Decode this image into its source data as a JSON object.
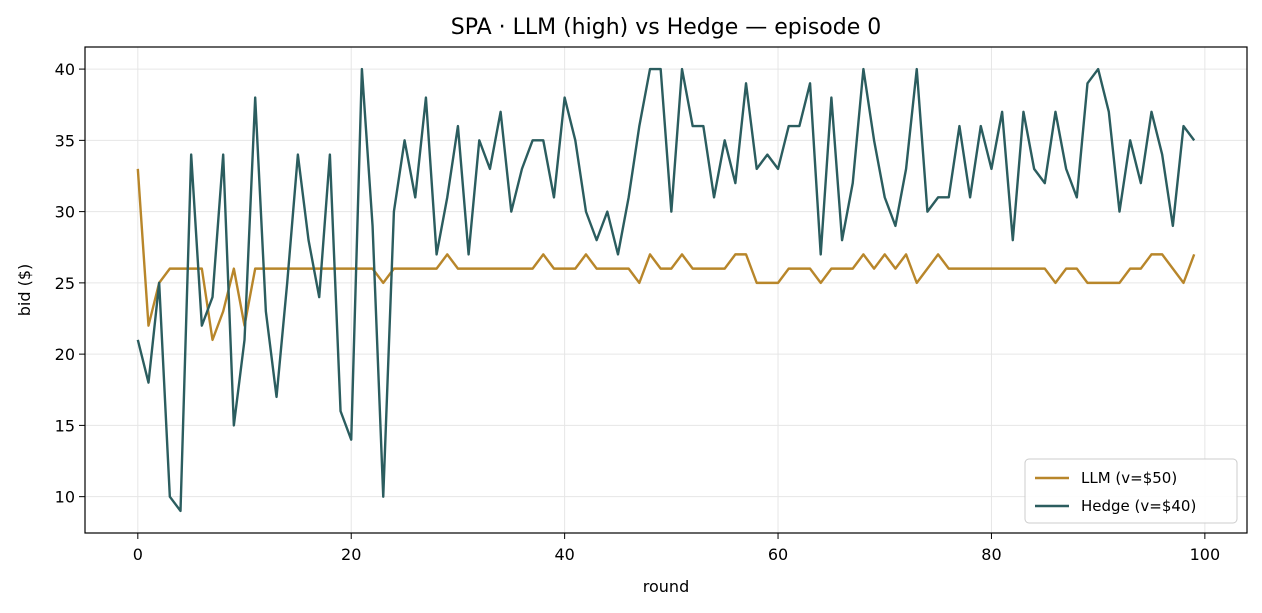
{
  "chart_data": {
    "type": "line",
    "title": "SPA · LLM (high) vs Hedge — episode 0",
    "xlabel": "round",
    "ylabel": "bid ($)",
    "xlim": [
      -4.95,
      103.95
    ],
    "ylim": [
      7.45,
      41.55
    ],
    "xticks": [
      0,
      20,
      40,
      60,
      80,
      100
    ],
    "yticks": [
      10,
      15,
      20,
      25,
      30,
      35,
      40
    ],
    "grid": true,
    "legend_position": "lower-right",
    "series": [
      {
        "name": "LLM (v=$50)",
        "color": "#b8862a",
        "values": [
          33,
          22,
          25,
          26,
          26,
          26,
          26,
          21,
          23,
          26,
          22,
          26,
          26,
          26,
          26,
          26,
          26,
          26,
          26,
          26,
          26,
          26,
          26,
          25,
          26,
          26,
          26,
          26,
          26,
          27,
          26,
          26,
          26,
          26,
          26,
          26,
          26,
          26,
          27,
          26,
          26,
          26,
          27,
          26,
          26,
          26,
          26,
          25,
          27,
          26,
          26,
          27,
          26,
          26,
          26,
          26,
          27,
          27,
          25,
          25,
          25,
          26,
          26,
          26,
          25,
          26,
          26,
          26,
          27,
          26,
          27,
          26,
          27,
          25,
          26,
          27,
          26,
          26,
          26,
          26,
          26,
          26,
          26,
          26,
          26,
          26,
          25,
          26,
          26,
          25,
          25,
          25,
          25,
          26,
          26,
          27,
          27,
          26,
          25,
          27
        ]
      },
      {
        "name": "Hedge (v=$40)",
        "color": "#2b5d5f",
        "values": [
          21,
          18,
          25,
          10,
          9,
          34,
          22,
          24,
          34,
          15,
          21,
          38,
          23,
          17,
          25,
          34,
          28,
          24,
          34,
          16,
          14,
          40,
          29,
          10,
          30,
          35,
          31,
          38,
          27,
          31,
          36,
          27,
          35,
          33,
          37,
          30,
          33,
          35,
          35,
          31,
          38,
          35,
          30,
          28,
          30,
          27,
          31,
          36,
          40,
          40,
          30,
          40,
          36,
          36,
          31,
          35,
          32,
          39,
          33,
          34,
          33,
          36,
          36,
          39,
          27,
          38,
          28,
          32,
          40,
          35,
          31,
          29,
          33,
          40,
          30,
          31,
          31,
          36,
          31,
          36,
          33,
          37,
          28,
          37,
          33,
          32,
          37,
          33,
          31,
          39,
          40,
          37,
          30,
          35,
          32,
          37,
          34,
          29,
          36,
          35
        ]
      }
    ]
  }
}
